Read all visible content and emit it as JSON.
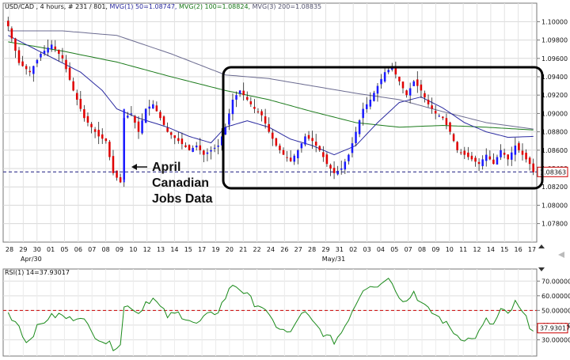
{
  "header": {
    "title": "USD/CAD , 4 hours, # 231 / 801,",
    "mvg1": "MVG(1) 50=1.08747,",
    "mvg2": "MVG(2) 100=1.08824,",
    "mvg3": "MVG(3) 200=1.08835"
  },
  "rsi_header": "RSI(1) 14=37.93017",
  "annotation": [
    "April",
    "Canadian",
    "Jobs Data"
  ],
  "colors": {
    "bull": "#1a1aff",
    "bear": "#e00000",
    "neutral": "#111111",
    "ma50": "#2a2aa0",
    "ma100": "#1a7a1a",
    "ma200": "#6b6b90",
    "rsi": "#1a8a1a",
    "rsi_ref": "#cc0000",
    "price_box_border": "#cc0000",
    "price_line": "#1a1a80"
  },
  "chart_data": [
    {
      "type": "candlestick",
      "title": "USD/CAD , 4 hours",
      "y_ticks": [
        "1.10000",
        "1.09800",
        "1.09600",
        "1.09400",
        "1.09200",
        "1.09000",
        "1.08800",
        "1.08600",
        "1.08400",
        "1.08200",
        "1.08000",
        "1.07800"
      ],
      "ylim": [
        1.0765,
        1.1015
      ],
      "current_price": "1.08363",
      "current_price_value": 1.08363,
      "x_ticks": [
        "28",
        "29",
        "30",
        "01",
        "05",
        "06",
        "07",
        "08",
        "09",
        "10",
        "12",
        "13",
        "14",
        "15",
        "17",
        "19",
        "20",
        "21",
        "22",
        "24",
        "26",
        "27",
        "28",
        "29",
        "31",
        "02",
        "03",
        "04",
        "05",
        "07",
        "08",
        "09",
        "10",
        "11",
        "12",
        "14",
        "15",
        "16",
        "17"
      ],
      "x_sublabels": [
        "Apr/30",
        "May/31"
      ],
      "series_anchors": {
        "close": [
          [
            0,
            1.0995
          ],
          [
            3,
            1.0955
          ],
          [
            6,
            1.0945
          ],
          [
            9,
            1.0965
          ],
          [
            12,
            1.0975
          ],
          [
            15,
            1.096
          ],
          [
            18,
            1.0925
          ],
          [
            21,
            1.0895
          ],
          [
            25,
            1.0875
          ],
          [
            27,
            1.087
          ],
          [
            29,
            1.0835
          ],
          [
            31,
            1.0825
          ],
          [
            32,
            1.0895
          ],
          [
            34,
            1.09
          ],
          [
            36,
            1.088
          ],
          [
            38,
            1.0905
          ],
          [
            40,
            1.091
          ],
          [
            42,
            1.0895
          ],
          [
            44,
            1.088
          ],
          [
            47,
            1.087
          ],
          [
            50,
            1.086
          ],
          [
            52,
            1.0865
          ],
          [
            54,
            1.0855
          ],
          [
            56,
            1.086
          ],
          [
            58,
            1.0865
          ],
          [
            60,
            1.0885
          ],
          [
            62,
            1.0915
          ],
          [
            64,
            1.0925
          ],
          [
            66,
            1.0915
          ],
          [
            68,
            1.0905
          ],
          [
            70,
            1.0898
          ],
          [
            72,
            1.088
          ],
          [
            74,
            1.0865
          ],
          [
            76,
            1.0855
          ],
          [
            78,
            1.0848
          ],
          [
            80,
            1.086
          ],
          [
            82,
            1.0875
          ],
          [
            84,
            1.087
          ],
          [
            86,
            1.086
          ],
          [
            88,
            1.0845
          ],
          [
            90,
            1.0835
          ],
          [
            92,
            1.084
          ],
          [
            94,
            1.0855
          ],
          [
            96,
            1.088
          ],
          [
            98,
            1.0905
          ],
          [
            100,
            1.0915
          ],
          [
            102,
            1.093
          ],
          [
            104,
            1.0945
          ],
          [
            106,
            1.095
          ],
          [
            108,
            1.0935
          ],
          [
            110,
            1.092
          ],
          [
            112,
            1.0935
          ],
          [
            114,
            1.0925
          ],
          [
            116,
            1.091
          ],
          [
            118,
            1.09
          ],
          [
            120,
            1.0895
          ],
          [
            122,
            1.088
          ],
          [
            124,
            1.086
          ],
          [
            126,
            1.0855
          ],
          [
            128,
            1.085
          ],
          [
            130,
            1.0845
          ],
          [
            132,
            1.0855
          ],
          [
            134,
            1.0845
          ],
          [
            136,
            1.086
          ],
          [
            138,
            1.085
          ],
          [
            140,
            1.0865
          ],
          [
            142,
            1.0855
          ],
          [
            144,
            1.0845
          ],
          [
            145,
            1.0836
          ]
        ]
      },
      "ma50_anchors": [
        [
          0,
          1.0985
        ],
        [
          10,
          1.0965
        ],
        [
          20,
          1.0945
        ],
        [
          26,
          1.0925
        ],
        [
          30,
          1.0905
        ],
        [
          36,
          1.0895
        ],
        [
          44,
          1.0885
        ],
        [
          50,
          1.0875
        ],
        [
          56,
          1.0868
        ],
        [
          60,
          1.0885
        ],
        [
          66,
          1.0892
        ],
        [
          72,
          1.0885
        ],
        [
          78,
          1.0872
        ],
        [
          84,
          1.0865
        ],
        [
          90,
          1.0855
        ],
        [
          96,
          1.0865
        ],
        [
          102,
          1.089
        ],
        [
          108,
          1.0912
        ],
        [
          114,
          1.0918
        ],
        [
          120,
          1.0906
        ],
        [
          126,
          1.089
        ],
        [
          132,
          1.088
        ],
        [
          138,
          1.0874
        ],
        [
          145,
          1.0875
        ]
      ],
      "ma100_anchors": [
        [
          0,
          1.0978
        ],
        [
          15,
          1.0968
        ],
        [
          30,
          1.0956
        ],
        [
          45,
          1.094
        ],
        [
          60,
          1.0925
        ],
        [
          72,
          1.0915
        ],
        [
          84,
          1.0902
        ],
        [
          96,
          1.089
        ],
        [
          108,
          1.0885
        ],
        [
          120,
          1.0887
        ],
        [
          132,
          1.0885
        ],
        [
          145,
          1.0882
        ]
      ],
      "ma200_anchors": [
        [
          0,
          1.099
        ],
        [
          15,
          1.099
        ],
        [
          30,
          1.0985
        ],
        [
          45,
          1.0965
        ],
        [
          60,
          1.0942
        ],
        [
          72,
          1.0938
        ],
        [
          84,
          1.093
        ],
        [
          96,
          1.0922
        ],
        [
          108,
          1.0915
        ],
        [
          120,
          1.0902
        ],
        [
          132,
          1.089
        ],
        [
          145,
          1.0883
        ]
      ],
      "candle_count": 146
    },
    {
      "type": "line",
      "title": "RSI(1) 14=37.93017",
      "y_ticks": [
        "70.00000",
        "60.00000",
        "50.00000",
        "40.00000",
        "30.00000"
      ],
      "ylim": [
        20,
        75
      ],
      "reference_level": 50,
      "current_value": "37.93017",
      "current_value_num": 37.93017,
      "anchors": [
        [
          0,
          48
        ],
        [
          3,
          40
        ],
        [
          5,
          28
        ],
        [
          8,
          38
        ],
        [
          11,
          45
        ],
        [
          14,
          47
        ],
        [
          17,
          44
        ],
        [
          20,
          47
        ],
        [
          23,
          35
        ],
        [
          26,
          30
        ],
        [
          29,
          25
        ],
        [
          31,
          28
        ],
        [
          32,
          52
        ],
        [
          34,
          53
        ],
        [
          36,
          48
        ],
        [
          38,
          56
        ],
        [
          40,
          58
        ],
        [
          42,
          52
        ],
        [
          44,
          46
        ],
        [
          47,
          48
        ],
        [
          50,
          44
        ],
        [
          52,
          40
        ],
        [
          54,
          45
        ],
        [
          56,
          47
        ],
        [
          58,
          50
        ],
        [
          60,
          59
        ],
        [
          62,
          68
        ],
        [
          64,
          65
        ],
        [
          66,
          60
        ],
        [
          68,
          55
        ],
        [
          70,
          53
        ],
        [
          72,
          45
        ],
        [
          74,
          40
        ],
        [
          76,
          36
        ],
        [
          78,
          34
        ],
        [
          80,
          45
        ],
        [
          82,
          48
        ],
        [
          84,
          42
        ],
        [
          86,
          37
        ],
        [
          88,
          32
        ],
        [
          90,
          29
        ],
        [
          92,
          35
        ],
        [
          94,
          45
        ],
        [
          96,
          55
        ],
        [
          98,
          65
        ],
        [
          100,
          68
        ],
        [
          102,
          66
        ],
        [
          104,
          72
        ],
        [
          106,
          70
        ],
        [
          108,
          60
        ],
        [
          110,
          56
        ],
        [
          112,
          63
        ],
        [
          114,
          55
        ],
        [
          116,
          50
        ],
        [
          118,
          47
        ],
        [
          120,
          43
        ],
        [
          122,
          38
        ],
        [
          124,
          33
        ],
        [
          126,
          31
        ],
        [
          128,
          30
        ],
        [
          130,
          35
        ],
        [
          132,
          43
        ],
        [
          134,
          40
        ],
        [
          136,
          50
        ],
        [
          138,
          47
        ],
        [
          140,
          55
        ],
        [
          142,
          48
        ],
        [
          144,
          40
        ],
        [
          145,
          37.93
        ]
      ]
    }
  ]
}
